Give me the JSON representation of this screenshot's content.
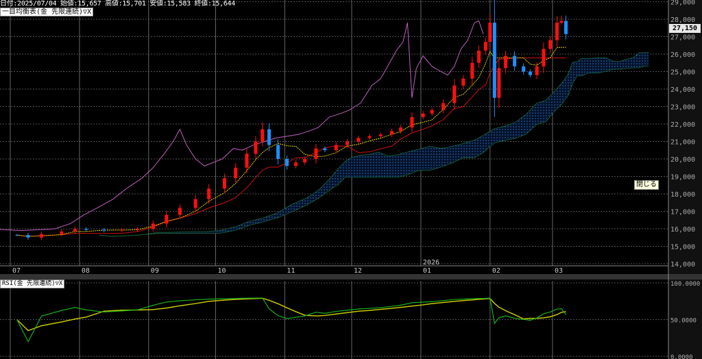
{
  "header": {
    "info": "日付:2025/07/04 始値:15,657 高値:15,701 安値:15,583 終値:15,644",
    "main_indicator": "一目均衡表(金 先限連続)▽X",
    "sub_indicator": "RSI(金 先限連続)▽X"
  },
  "last_price_label": "27,150",
  "tooltip": "閉じる",
  "colors": {
    "up": "#ff1010",
    "down": "#1e90ff",
    "tenkan": "#e6d200",
    "kijun": "#d01010",
    "chikou": "#c060c0",
    "cloud_line": "#20a050",
    "cloud_dots": "#2a70c0",
    "rsi": "#18b018",
    "rsi_signal": "#c8c800",
    "grid": "#555555"
  },
  "chart_data": {
    "type": "candlestick",
    "price_axis": {
      "range": [
        14000,
        29000
      ],
      "ticks": [
        "14,000",
        "15,000",
        "16,000",
        "17,000",
        "18,000",
        "19,000",
        "20,000",
        "21,000",
        "22,000",
        "23,000",
        "24,000",
        "25,000",
        "26,000",
        "27,000",
        "28,000",
        "29,000"
      ]
    },
    "time_axis": {
      "ticks": [
        {
          "label": "07",
          "date": "2025-07-01"
        },
        {
          "label": "08",
          "date": "2025-08-01"
        },
        {
          "label": "09",
          "date": "2025-09-01"
        },
        {
          "label": "10",
          "date": "2025-10-01"
        },
        {
          "label": "11",
          "date": "2025-11-01"
        },
        {
          "label": "12",
          "date": "2025-12-01"
        },
        {
          "label": "01",
          "date": "2026-01-01"
        },
        {
          "label": "02",
          "date": "2026-02-01"
        },
        {
          "label": "03",
          "date": "2026-03-01"
        }
      ],
      "year_label": "2026"
    },
    "rsi_axis": {
      "range": [
        0,
        100
      ],
      "ticks": [
        "0.0000",
        "50.0000",
        "100.0000"
      ]
    },
    "grid": true,
    "prices": [
      {
        "d": "2025-07-04",
        "o": 15657,
        "h": 15701,
        "l": 15583,
        "c": 15644
      },
      {
        "d": "2025-07-09",
        "c": 15500
      },
      {
        "d": "2025-07-15",
        "c": 15700
      },
      {
        "d": "2025-07-24",
        "c": 15850
      },
      {
        "d": "2025-07-30",
        "c": 16000
      },
      {
        "d": "2025-08-04",
        "c": 15950
      },
      {
        "d": "2025-08-12",
        "c": 15900
      },
      {
        "d": "2025-08-20",
        "c": 15950
      },
      {
        "d": "2025-08-27",
        "c": 16000
      },
      {
        "d": "2025-09-03",
        "c": 16300
      },
      {
        "d": "2025-09-09",
        "c": 16800
      },
      {
        "d": "2025-09-15",
        "c": 17200
      },
      {
        "d": "2025-09-22",
        "c": 17700
      },
      {
        "d": "2025-09-28",
        "c": 18300
      },
      {
        "d": "2025-10-05",
        "c": 18900
      },
      {
        "d": "2025-10-10",
        "c": 19500
      },
      {
        "d": "2025-10-15",
        "c": 20300
      },
      {
        "d": "2025-10-19",
        "c": 21000
      },
      {
        "d": "2025-10-22",
        "c": 21700,
        "h": 22100
      },
      {
        "d": "2025-10-25",
        "c": 20800
      },
      {
        "d": "2025-10-29",
        "c": 20000
      },
      {
        "d": "2025-11-02",
        "c": 19600
      },
      {
        "d": "2025-11-06",
        "c": 19800
      },
      {
        "d": "2025-11-10",
        "c": 20000
      },
      {
        "d": "2025-11-15",
        "c": 20600
      },
      {
        "d": "2025-11-19",
        "c": 20500
      },
      {
        "d": "2025-11-24",
        "c": 20800
      },
      {
        "d": "2025-11-29",
        "c": 21000
      },
      {
        "d": "2025-12-04",
        "c": 21200
      },
      {
        "d": "2025-12-09",
        "c": 21300
      },
      {
        "d": "2025-12-14",
        "c": 21400
      },
      {
        "d": "2025-12-19",
        "c": 21600
      },
      {
        "d": "2025-12-23",
        "c": 21800
      },
      {
        "d": "2025-12-28",
        "c": 22400
      },
      {
        "d": "2026-01-02",
        "c": 22600
      },
      {
        "d": "2026-01-06",
        "c": 22800
      },
      {
        "d": "2026-01-11",
        "c": 23200
      },
      {
        "d": "2026-01-16",
        "c": 24200
      },
      {
        "d": "2026-01-20",
        "c": 24600
      },
      {
        "d": "2026-01-24",
        "c": 25500
      },
      {
        "d": "2026-01-27",
        "c": 26200
      },
      {
        "d": "2026-01-30",
        "c": 26700
      },
      {
        "d": "2026-02-01",
        "c": 27800,
        "h": 28300
      },
      {
        "d": "2026-02-03",
        "c": 23500,
        "l": 22400
      },
      {
        "d": "2026-02-05",
        "c": 25200
      },
      {
        "d": "2026-02-08",
        "c": 25900
      },
      {
        "d": "2026-02-12",
        "c": 25300
      },
      {
        "d": "2026-02-16",
        "c": 25000
      },
      {
        "d": "2026-02-19",
        "c": 24800
      },
      {
        "d": "2026-02-22",
        "c": 25300
      },
      {
        "d": "2026-02-25",
        "c": 26300
      },
      {
        "d": "2026-02-28",
        "c": 26800
      },
      {
        "d": "2026-03-03",
        "c": 27800
      },
      {
        "d": "2026-03-05",
        "c": 27900,
        "h": 28200
      },
      {
        "d": "2026-03-07",
        "c": 27150
      }
    ]
  }
}
